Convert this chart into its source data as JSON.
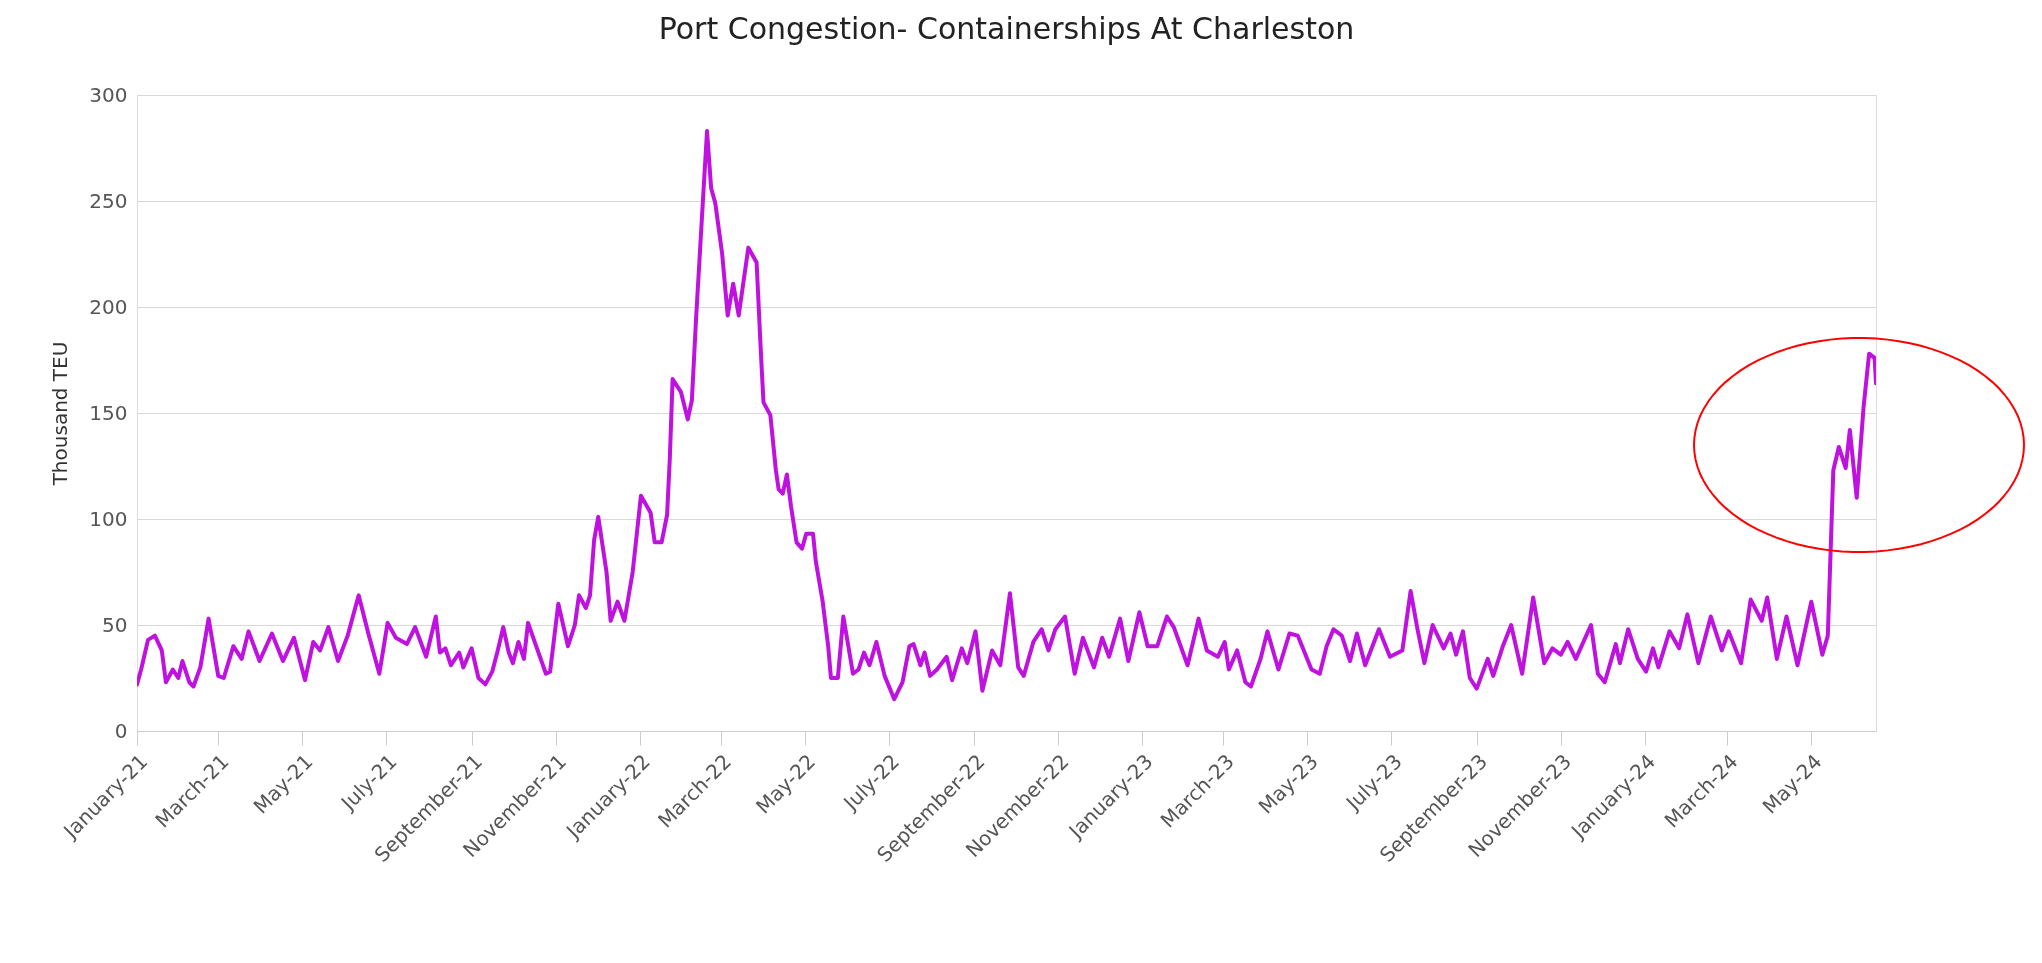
{
  "chart_data": {
    "type": "line",
    "title": "Port Congestion- Containerships At Charleston",
    "ylabel": "Thousand TEU",
    "x": [
      "2021-01-01",
      "2021-01-04",
      "2021-01-09",
      "2021-01-14",
      "2021-01-19",
      "2021-01-22",
      "2021-01-27",
      "2021-01-31",
      "2021-02-03",
      "2021-02-08",
      "2021-02-11",
      "2021-02-16",
      "2021-02-22",
      "2021-03-01",
      "2021-03-05",
      "2021-03-12",
      "2021-03-18",
      "2021-03-23",
      "2021-03-31",
      "2021-04-09",
      "2021-04-17",
      "2021-04-25",
      "2021-05-03",
      "2021-05-09",
      "2021-05-14",
      "2021-05-20",
      "2021-05-27",
      "2021-06-03",
      "2021-06-11",
      "2021-06-18",
      "2021-06-26",
      "2021-07-02",
      "2021-07-08",
      "2021-07-16",
      "2021-07-22",
      "2021-07-30",
      "2021-08-06",
      "2021-08-09",
      "2021-08-13",
      "2021-08-17",
      "2021-08-23",
      "2021-08-26",
      "2021-09-01",
      "2021-09-06",
      "2021-09-11",
      "2021-09-16",
      "2021-09-20",
      "2021-09-24",
      "2021-09-28",
      "2021-10-01",
      "2021-10-05",
      "2021-10-09",
      "2021-10-12",
      "2021-10-19",
      "2021-10-25",
      "2021-10-28",
      "2021-10-31",
      "2021-11-03",
      "2021-11-10",
      "2021-11-15",
      "2021-11-18",
      "2021-11-23",
      "2021-11-26",
      "2021-11-29",
      "2021-12-02",
      "2021-12-08",
      "2021-12-11",
      "2021-12-16",
      "2021-12-21",
      "2021-12-27",
      "2022-01-02",
      "2022-01-09",
      "2022-01-12",
      "2022-01-17",
      "2022-01-21",
      "2022-01-23",
      "2022-01-25",
      "2022-01-31",
      "2022-02-05",
      "2022-02-08",
      "2022-02-11",
      "2022-02-16",
      "2022-02-19",
      "2022-02-22",
      "2022-02-25",
      "2022-03-02",
      "2022-03-06",
      "2022-03-10",
      "2022-03-14",
      "2022-03-21",
      "2022-03-27",
      "2022-03-30",
      "2022-04-01",
      "2022-04-06",
      "2022-04-10",
      "2022-04-12",
      "2022-04-15",
      "2022-04-18",
      "2022-04-21",
      "2022-04-25",
      "2022-04-29",
      "2022-05-02",
      "2022-05-07",
      "2022-05-09",
      "2022-05-14",
      "2022-05-18",
      "2022-05-20",
      "2022-05-25",
      "2022-05-29",
      "2022-06-05",
      "2022-06-09",
      "2022-06-13",
      "2022-06-17",
      "2022-06-22",
      "2022-06-28",
      "2022-07-05",
      "2022-07-11",
      "2022-07-16",
      "2022-07-19",
      "2022-07-24",
      "2022-07-27",
      "2022-07-31",
      "2022-08-05",
      "2022-08-12",
      "2022-08-16",
      "2022-08-23",
      "2022-08-27",
      "2022-09-02",
      "2022-09-07",
      "2022-09-14",
      "2022-09-20",
      "2022-09-27",
      "2022-10-03",
      "2022-10-07",
      "2022-10-14",
      "2022-10-20",
      "2022-10-25",
      "2022-10-30",
      "2022-11-06",
      "2022-11-13",
      "2022-11-19",
      "2022-11-27",
      "2022-12-03",
      "2022-12-08",
      "2022-12-16",
      "2022-12-22",
      "2022-12-30",
      "2023-01-05",
      "2023-01-12",
      "2023-01-19",
      "2023-01-24",
      "2023-02-03",
      "2023-02-11",
      "2023-02-17",
      "2023-02-25",
      "2023-03-02",
      "2023-03-05",
      "2023-03-11",
      "2023-03-17",
      "2023-03-21",
      "2023-03-28",
      "2023-04-02",
      "2023-04-10",
      "2023-04-18",
      "2023-04-24",
      "2023-05-04",
      "2023-05-10",
      "2023-05-15",
      "2023-05-20",
      "2023-05-26",
      "2023-06-01",
      "2023-06-06",
      "2023-06-12",
      "2023-06-22",
      "2023-06-30",
      "2023-07-09",
      "2023-07-15",
      "2023-07-20",
      "2023-07-25",
      "2023-07-31",
      "2023-08-08",
      "2023-08-13",
      "2023-08-17",
      "2023-08-22",
      "2023-08-27",
      "2023-09-01",
      "2023-09-09",
      "2023-09-13",
      "2023-09-20",
      "2023-09-26",
      "2023-10-04",
      "2023-10-12",
      "2023-10-20",
      "2023-10-26",
      "2023-11-01",
      "2023-11-06",
      "2023-11-12",
      "2023-11-23",
      "2023-11-28",
      "2023-12-03",
      "2023-12-11",
      "2023-12-14",
      "2023-12-20",
      "2023-12-27",
      "2024-01-02",
      "2024-01-07",
      "2024-01-11",
      "2024-01-19",
      "2024-01-26",
      "2024-02-01",
      "2024-02-09",
      "2024-02-18",
      "2024-02-26",
      "2024-03-02",
      "2024-03-11",
      "2024-03-18",
      "2024-03-26",
      "2024-03-30",
      "2024-04-06",
      "2024-04-13",
      "2024-04-21",
      "2024-05-01",
      "2024-05-09",
      "2024-05-13",
      "2024-05-17",
      "2024-05-21",
      "2024-05-26",
      "2024-05-29",
      "2024-06-03",
      "2024-06-08",
      "2024-06-12",
      "2024-06-16",
      "2024-06-17"
    ],
    "series": [
      {
        "color": "#bf12e0",
        "values": [
          22,
          29,
          43,
          45,
          38,
          23,
          29,
          25,
          33,
          23,
          21,
          30,
          53,
          26,
          25,
          40,
          34,
          47,
          33,
          46,
          33,
          44,
          24,
          42,
          38,
          49,
          33,
          45,
          64,
          46,
          27,
          51,
          44,
          41,
          49,
          35,
          54,
          37,
          39,
          31,
          37,
          30,
          39,
          25,
          22,
          28,
          38,
          49,
          37,
          32,
          42,
          34,
          51,
          38,
          27,
          28,
          44,
          60,
          40,
          50,
          64,
          58,
          64,
          90,
          101,
          75,
          52,
          61,
          52,
          75,
          111,
          103,
          89,
          89,
          102,
          129,
          166,
          160,
          147,
          156,
          194,
          250,
          283,
          256,
          249,
          225,
          196,
          211,
          196,
          228,
          221,
          180,
          155,
          149,
          123,
          114,
          112,
          121,
          106,
          89,
          86,
          93,
          93,
          80,
          61,
          40,
          25,
          25,
          54,
          27,
          29,
          37,
          31,
          42,
          26,
          15,
          23,
          40,
          41,
          31,
          37,
          26,
          29,
          35,
          24,
          39,
          32,
          47,
          19,
          38,
          31,
          65,
          30,
          26,
          42,
          48,
          38,
          48,
          54,
          27,
          44,
          30,
          44,
          35,
          53,
          33,
          56,
          40,
          40,
          54,
          49,
          31,
          53,
          38,
          35,
          42,
          29,
          38,
          23,
          21,
          34,
          47,
          29,
          46,
          45,
          29,
          27,
          40,
          48,
          45,
          33,
          46,
          31,
          48,
          35,
          38,
          66,
          48,
          32,
          50,
          39,
          46,
          36,
          47,
          25,
          20,
          34,
          26,
          40,
          50,
          27,
          63,
          32,
          39,
          36,
          42,
          34,
          50,
          27,
          23,
          41,
          32,
          48,
          34,
          28,
          39,
          30,
          47,
          39,
          55,
          32,
          54,
          38,
          47,
          32,
          62,
          52,
          63,
          34,
          54,
          31,
          61,
          36,
          45,
          123,
          134,
          124,
          142,
          110,
          153,
          178,
          176,
          164
        ]
      }
    ],
    "xlim": [
      "2021-01-01",
      "2024-06-17"
    ],
    "xticks": [
      {
        "value": "2021-01-01",
        "label": "January-21"
      },
      {
        "value": "2021-03-01",
        "label": "March-21"
      },
      {
        "value": "2021-05-01",
        "label": "May-21"
      },
      {
        "value": "2021-07-01",
        "label": "July-21"
      },
      {
        "value": "2021-09-01",
        "label": "September-21"
      },
      {
        "value": "2021-11-01",
        "label": "November-21"
      },
      {
        "value": "2022-01-01",
        "label": "January-22"
      },
      {
        "value": "2022-03-01",
        "label": "March-22"
      },
      {
        "value": "2022-05-01",
        "label": "May-22"
      },
      {
        "value": "2022-07-01",
        "label": "July-22"
      },
      {
        "value": "2022-09-01",
        "label": "September-22"
      },
      {
        "value": "2022-11-01",
        "label": "November-22"
      },
      {
        "value": "2023-01-01",
        "label": "January-23"
      },
      {
        "value": "2023-03-01",
        "label": "March-23"
      },
      {
        "value": "2023-05-01",
        "label": "May-23"
      },
      {
        "value": "2023-07-01",
        "label": "July-23"
      },
      {
        "value": "2023-09-01",
        "label": "September-23"
      },
      {
        "value": "2023-11-01",
        "label": "November-23"
      },
      {
        "value": "2024-01-01",
        "label": "January-24"
      },
      {
        "value": "2024-03-01",
        "label": "March-24"
      },
      {
        "value": "2024-05-01",
        "label": "May-24"
      }
    ],
    "ylim": [
      0,
      300
    ],
    "yticks": [
      0,
      50,
      100,
      150,
      200,
      250,
      300
    ],
    "grid": "y"
  }
}
